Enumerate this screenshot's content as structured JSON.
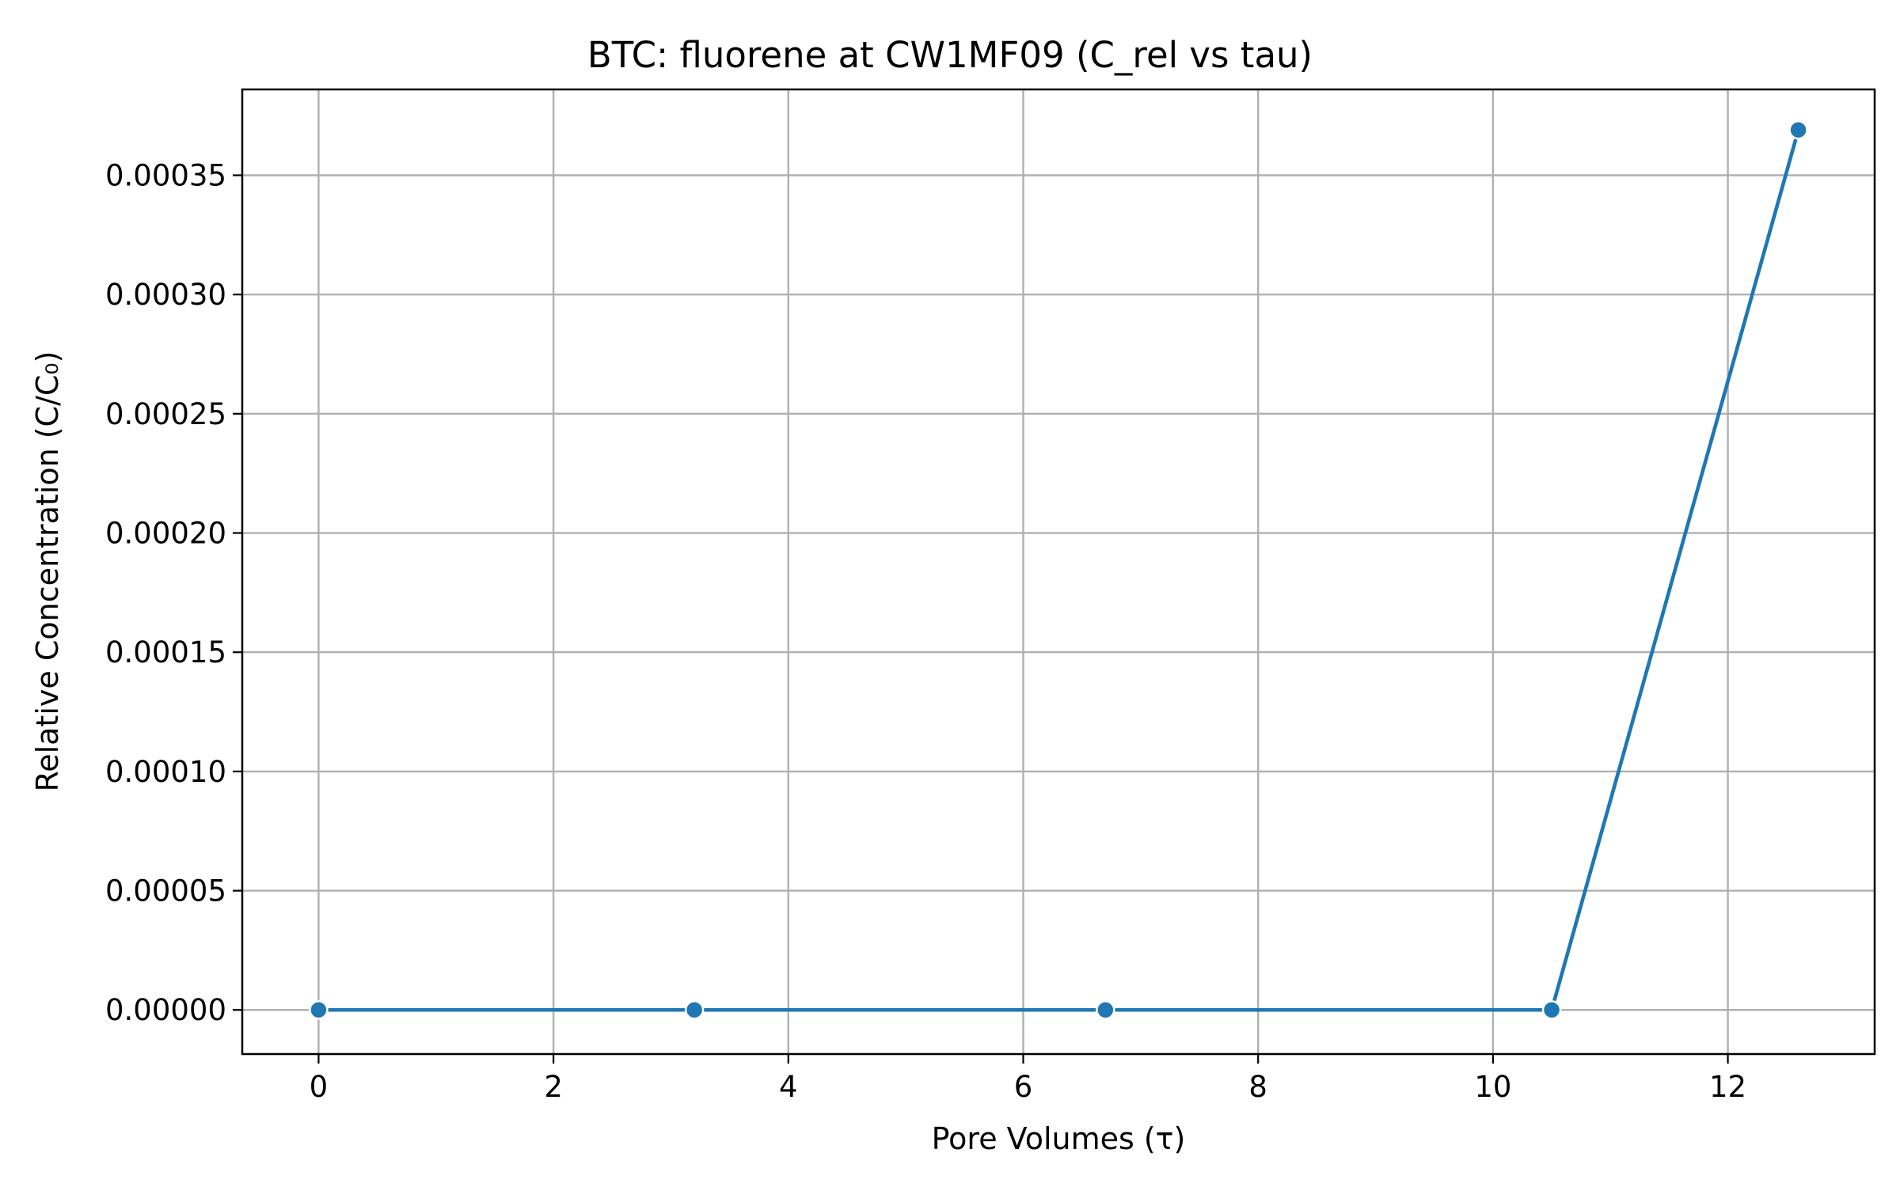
{
  "chart_data": {
    "type": "line",
    "title": "BTC: fluorene at CW1MF09 (C_rel vs tau)",
    "xlabel": "Pore Volumes (τ)",
    "ylabel": "Relative Concentration (C/C₀)",
    "xlim": [
      -0.65,
      13.25
    ],
    "ylim": [
      -1.85e-05,
      0.000386
    ],
    "x_ticks": [
      0,
      2,
      4,
      6,
      8,
      10,
      12
    ],
    "x_tick_labels": [
      "0",
      "2",
      "4",
      "6",
      "8",
      "10",
      "12"
    ],
    "y_ticks": [
      0,
      5e-05,
      0.0001,
      0.00015,
      0.0002,
      0.00025,
      0.0003,
      0.00035
    ],
    "y_tick_labels": [
      "0.00000",
      "0.00005",
      "0.00010",
      "0.00015",
      "0.00020",
      "0.00025",
      "0.00030",
      "0.00035"
    ],
    "grid": true,
    "series": [
      {
        "color": "#1f77b4",
        "x": [
          0,
          3.2,
          6.7,
          10.5,
          12.6
        ],
        "y": [
          0,
          0,
          0,
          0,
          0.000369
        ]
      }
    ]
  }
}
